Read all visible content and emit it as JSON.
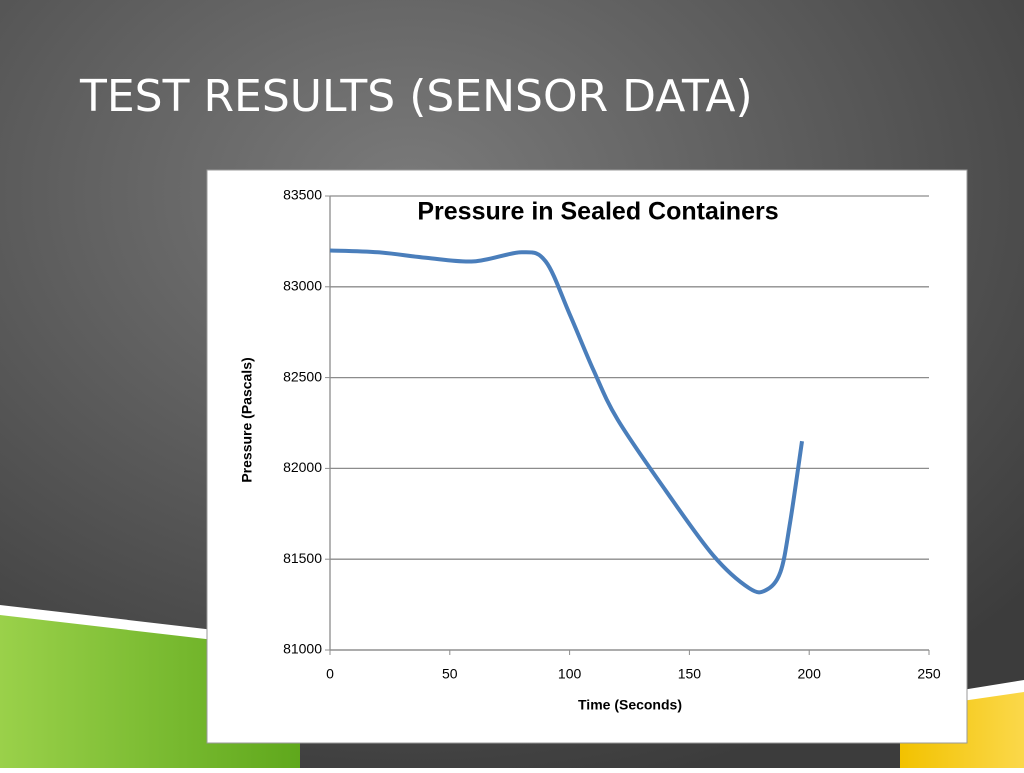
{
  "slide_title": "TEST RESULTS (SENSOR DATA)",
  "chart_data": {
    "type": "line",
    "title": "Pressure in Sealed Containers",
    "x_label": "Time (Seconds)",
    "y_label": "Pressure (Pascals)",
    "x": [
      0,
      20,
      40,
      60,
      80,
      90,
      100,
      110,
      120,
      140,
      160,
      175,
      182,
      188,
      192,
      197
    ],
    "values": [
      83200,
      83190,
      83160,
      83140,
      83190,
      83140,
      82850,
      82540,
      82270,
      81880,
      81520,
      81340,
      81330,
      81430,
      81700,
      82150
    ],
    "color": "#4a7ebb",
    "xlim": [
      0,
      250
    ],
    "xticks": [
      0,
      50,
      100,
      150,
      200,
      250
    ],
    "ylim": [
      81000,
      83500
    ],
    "yticks": [
      81000,
      81500,
      82000,
      82500,
      83000,
      83500
    ],
    "grid": true
  }
}
